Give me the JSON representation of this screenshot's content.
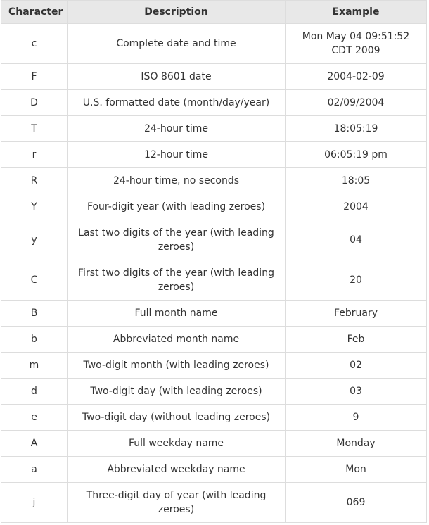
{
  "table": {
    "headers": [
      "Character",
      "Description",
      "Example"
    ],
    "rows": [
      {
        "character": "c",
        "description": "Complete date and time",
        "example": "Mon May 04 09:51:52 CDT 2009",
        "lines": 2
      },
      {
        "character": "F",
        "description": "ISO 8601 date",
        "example": "2004-02-09",
        "lines": 1
      },
      {
        "character": "D",
        "description": "U.S. formatted date (month/day/year)",
        "example": "02/09/2004",
        "lines": 1
      },
      {
        "character": "T",
        "description": "24-hour time",
        "example": "18:05:19",
        "lines": 1
      },
      {
        "character": "r",
        "description": "12-hour time",
        "example": "06:05:19 pm",
        "lines": 1
      },
      {
        "character": "R",
        "description": "24-hour time, no seconds",
        "example": "18:05",
        "lines": 1
      },
      {
        "character": "Y",
        "description": "Four-digit year (with leading zeroes)",
        "example": "2004",
        "lines": 1
      },
      {
        "character": "y",
        "description": "Last two digits of the year (with leading zeroes)",
        "example": "04",
        "lines": 2
      },
      {
        "character": "C",
        "description": "First two digits of the year (with leading zeroes)",
        "example": "20",
        "lines": 2
      },
      {
        "character": "B",
        "description": "Full month name",
        "example": "February",
        "lines": 1
      },
      {
        "character": "b",
        "description": "Abbreviated month name",
        "example": "Feb",
        "lines": 1
      },
      {
        "character": "m",
        "description": "Two-digit month (with leading zeroes)",
        "example": "02",
        "lines": 1
      },
      {
        "character": "d",
        "description": "Two-digit day (with leading zeroes)",
        "example": "03",
        "lines": 1
      },
      {
        "character": "e",
        "description": "Two-digit day (without leading zeroes)",
        "example": "9",
        "lines": 1
      },
      {
        "character": "A",
        "description": "Full weekday name",
        "example": "Monday",
        "lines": 1
      },
      {
        "character": "a",
        "description": "Abbreviated weekday name",
        "example": "Mon",
        "lines": 1
      },
      {
        "character": "j",
        "description": "Three-digit day of year (with leading zeroes)",
        "example": "069",
        "lines": 2
      }
    ]
  }
}
